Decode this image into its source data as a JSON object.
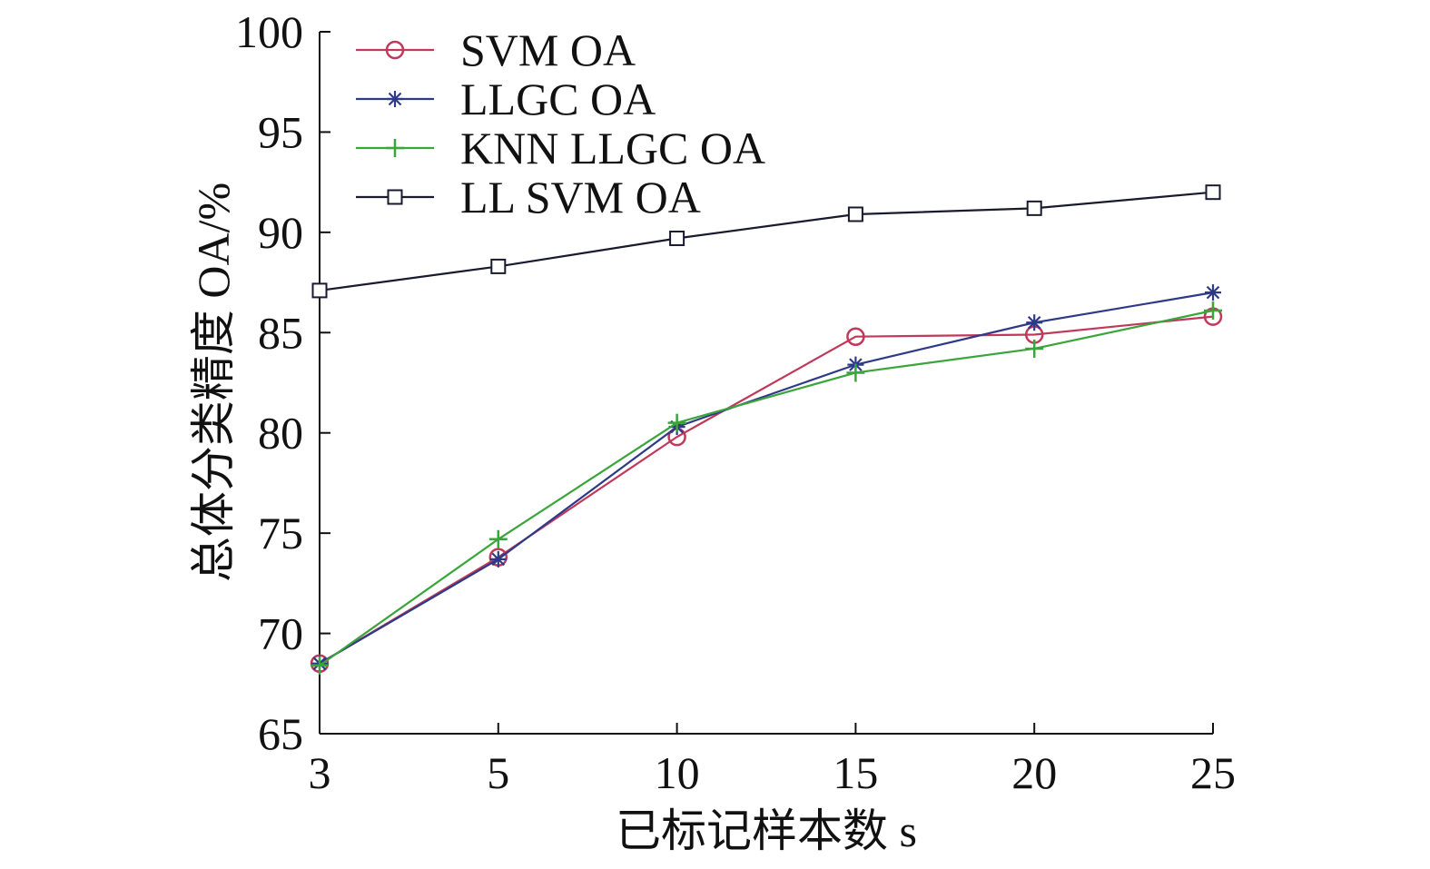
{
  "chart_data": {
    "type": "line",
    "categories": [
      "3",
      "5",
      "10",
      "15",
      "20",
      "25"
    ],
    "xlabel": "已标记样本数 s",
    "ylabel": "总体分类精度 OA/%",
    "ylim": [
      65,
      100
    ],
    "yticks": [
      "65",
      "70",
      "75",
      "80",
      "85",
      "90",
      "95",
      "100"
    ],
    "legend_position": "top-left",
    "series": [
      {
        "name": "SVM OA",
        "marker": "circle",
        "color": "#c0395a",
        "values": [
          68.5,
          73.8,
          79.8,
          84.8,
          84.9,
          85.8
        ]
      },
      {
        "name": "LLGC OA",
        "marker": "star",
        "color": "#2e3a87",
        "values": [
          68.5,
          73.7,
          80.3,
          83.4,
          85.5,
          87.0
        ]
      },
      {
        "name": "KNN LLGC OA",
        "marker": "plus",
        "color": "#3aa53a",
        "values": [
          68.4,
          74.7,
          80.5,
          83.0,
          84.2,
          86.1
        ]
      },
      {
        "name": "LL SVM OA",
        "marker": "square",
        "color": "#1a1a2e",
        "values": [
          87.1,
          88.3,
          89.7,
          90.9,
          91.2,
          92.0
        ]
      }
    ]
  }
}
